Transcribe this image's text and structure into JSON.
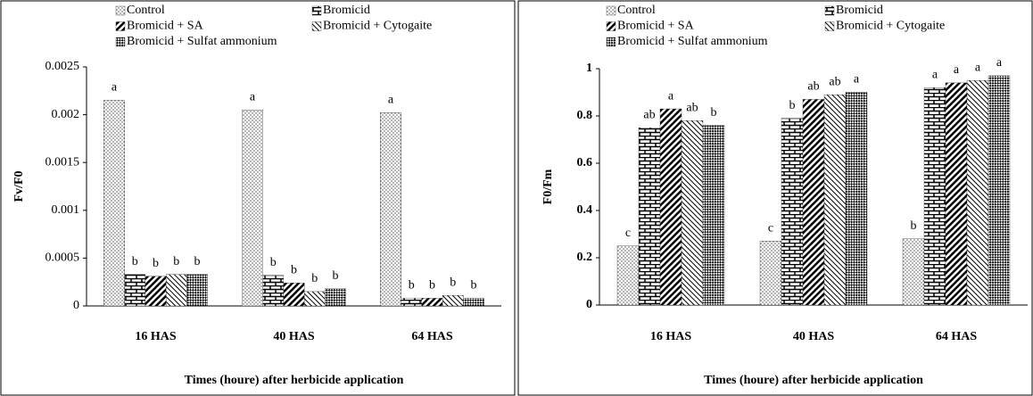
{
  "chart_data": [
    {
      "type": "bar",
      "ylabel": "Fv/F0",
      "xlabel": "Times (houre) after herbicide application",
      "categories": [
        "16 HAS",
        "40 HAS",
        "64 HAS"
      ],
      "ylim": [
        0,
        0.0025
      ],
      "yticks": [
        0,
        0.0005,
        0.001,
        0.0015,
        0.002,
        0.0025
      ],
      "series": [
        {
          "name": "Control",
          "color": "#000000",
          "pattern": "dots",
          "values": [
            0.00215,
            0.00205,
            0.00202
          ],
          "letters": [
            "a",
            "a",
            "a"
          ]
        },
        {
          "name": "Bromicid",
          "color": "#000000",
          "pattern": "bricks",
          "values": [
            0.00033,
            0.00032,
            8e-05
          ],
          "letters": [
            "b",
            "b",
            "b"
          ]
        },
        {
          "name": "Bromicid + SA",
          "color": "#000000",
          "pattern": "diagonal",
          "values": [
            0.00031,
            0.00024,
            8e-05
          ],
          "letters": [
            "b",
            "b",
            "b"
          ]
        },
        {
          "name": "Bromicid + Cytogaite",
          "color": "#000000",
          "pattern": "backdiagonal",
          "values": [
            0.00033,
            0.00015,
            0.00011
          ],
          "letters": [
            "b",
            "b",
            "b"
          ]
        },
        {
          "name": "Bromicid + Sulfat ammonium",
          "color": "#000000",
          "pattern": "checker",
          "values": [
            0.00033,
            0.00018,
            8e-05
          ],
          "letters": [
            "b",
            "b",
            "b"
          ]
        }
      ]
    },
    {
      "type": "bar",
      "ylabel": "F0/Fm",
      "xlabel": "Times (houre) after herbicide application",
      "categories": [
        "16 HAS",
        "40 HAS",
        "64 HAS"
      ],
      "ylim": [
        0,
        1
      ],
      "yticks": [
        0,
        0.2,
        0.4,
        0.6,
        0.8,
        1
      ],
      "series": [
        {
          "name": "Control",
          "color": "#000000",
          "pattern": "dots",
          "values": [
            0.25,
            0.27,
            0.28
          ],
          "letters": [
            "c",
            "c",
            "b"
          ]
        },
        {
          "name": "Bromicid",
          "color": "#000000",
          "pattern": "bricks",
          "values": [
            0.75,
            0.79,
            0.92
          ],
          "letters": [
            "ab",
            "b",
            "a"
          ]
        },
        {
          "name": "Bromicid + SA",
          "color": "#000000",
          "pattern": "diagonal",
          "values": [
            0.83,
            0.87,
            0.94
          ],
          "letters": [
            "a",
            "ab",
            "a"
          ]
        },
        {
          "name": "Bromicid + Cytogaite",
          "color": "#000000",
          "pattern": "backdiagonal",
          "values": [
            0.78,
            0.89,
            0.95
          ],
          "letters": [
            "ab",
            "ab",
            "a"
          ]
        },
        {
          "name": "Bromicid + Sulfat ammonium",
          "color": "#000000",
          "pattern": "checker",
          "values": [
            0.76,
            0.9,
            0.97
          ],
          "letters": [
            "b",
            "a",
            "a"
          ]
        }
      ]
    }
  ]
}
